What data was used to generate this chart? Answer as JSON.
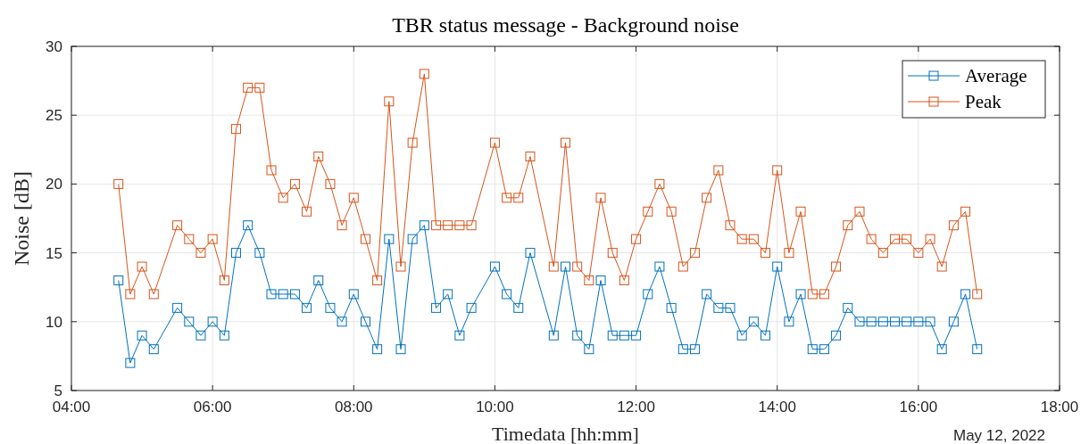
{
  "chart_data": {
    "type": "line",
    "title": "TBR status message - Background noise",
    "xlabel": "Timedata [hh:mm]",
    "ylabel": "Noise [dB]",
    "annotations": [
      "May 12, 2022"
    ],
    "x": [
      4.667,
      4.833,
      5,
      5.167,
      5.5,
      5.667,
      5.833,
      6,
      6.167,
      6.333,
      6.5,
      6.667,
      6.833,
      7,
      7.167,
      7.333,
      7.5,
      7.667,
      7.833,
      8,
      8.167,
      8.333,
      8.5,
      8.667,
      8.833,
      9,
      9.167,
      9.333,
      9.5,
      9.667,
      10,
      10.167,
      10.333,
      10.5,
      10.833,
      11,
      11.167,
      11.333,
      11.5,
      11.667,
      11.833,
      12,
      12.167,
      12.333,
      12.5,
      12.667,
      12.833,
      13,
      13.167,
      13.333,
      13.5,
      13.667,
      13.833,
      14,
      14.167,
      14.333,
      14.5,
      14.667,
      14.833,
      15,
      15.167,
      15.333,
      15.5,
      15.667,
      15.833,
      16,
      16.167,
      16.333,
      16.5,
      16.667,
      16.833
    ],
    "series": [
      {
        "name": "Average",
        "color": "#0072bd",
        "values": [
          13,
          7,
          9,
          8,
          11,
          10,
          9,
          10,
          9,
          15,
          17,
          15,
          12,
          12,
          12,
          11,
          13,
          11,
          10,
          12,
          10,
          8,
          16,
          8,
          16,
          17,
          11,
          12,
          9,
          11,
          14,
          12,
          11,
          15,
          9,
          14,
          9,
          8,
          13,
          9,
          9,
          9,
          12,
          14,
          11,
          8,
          8,
          12,
          11,
          11,
          9,
          10,
          9,
          14,
          10,
          12,
          8,
          8,
          9,
          11,
          10,
          10,
          10,
          10,
          10,
          10,
          10,
          8,
          10,
          12,
          8
        ]
      },
      {
        "name": "Peak",
        "color": "#d95319",
        "values": [
          20,
          12,
          14,
          12,
          17,
          16,
          15,
          16,
          13,
          24,
          27,
          27,
          21,
          19,
          20,
          18,
          22,
          20,
          17,
          19,
          16,
          13,
          26,
          14,
          23,
          28,
          17,
          17,
          17,
          17,
          23,
          19,
          19,
          22,
          14,
          23,
          14,
          13,
          19,
          15,
          13,
          16,
          18,
          20,
          18,
          14,
          15,
          19,
          21,
          17,
          16,
          16,
          15,
          21,
          15,
          18,
          12,
          12,
          14,
          17,
          18,
          16,
          15,
          16,
          16,
          15,
          16,
          14,
          17,
          18,
          12
        ]
      }
    ],
    "xlim": [
      4,
      18
    ],
    "xticks": [
      {
        "value": 4,
        "label": "04:00"
      },
      {
        "value": 6,
        "label": "06:00"
      },
      {
        "value": 8,
        "label": "08:00"
      },
      {
        "value": 10,
        "label": "10:00"
      },
      {
        "value": 12,
        "label": "12:00"
      },
      {
        "value": 14,
        "label": "14:00"
      },
      {
        "value": 16,
        "label": "16:00"
      },
      {
        "value": 18,
        "label": "18:00"
      }
    ],
    "ylim": [
      5,
      30
    ],
    "yticks": [
      5,
      10,
      15,
      20,
      25,
      30
    ],
    "grid": true,
    "legend": "top right",
    "marker": "square",
    "line_style": "solid"
  }
}
